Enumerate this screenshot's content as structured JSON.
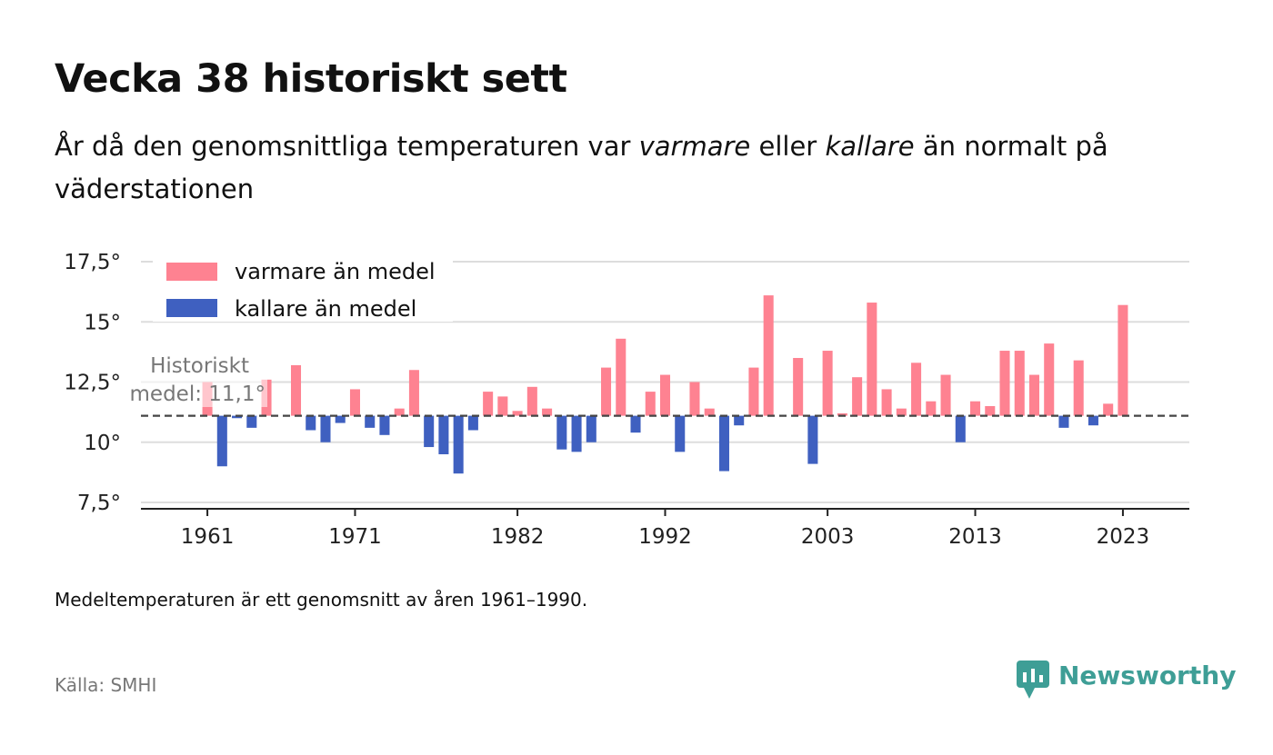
{
  "title": "Vecka 38 historiskt sett",
  "subtitle": {
    "part1": "År då den genomsnittliga temperaturen var ",
    "warmer": "varmare",
    "part2": " eller ",
    "colder": "kallare",
    "part3": " än normalt på väderstationen"
  },
  "footnote": "Medeltemperaturen är ett genomsnitt av åren 1961–1990.",
  "source": "Källa: SMHI",
  "brand": {
    "name": "Newsworthy",
    "icon": "newsworthy-logo-icon",
    "color": "#3e9e96"
  },
  "colors": {
    "warm": "#fe8291",
    "cold": "#3f60c0",
    "grid": "#dddddd",
    "reference_line": "#444444"
  },
  "chart_data": {
    "type": "bar",
    "baseline": 11.1,
    "reference_label": [
      "Historiskt",
      "medel: 11,1°"
    ],
    "legend": {
      "position": "top-left",
      "warm_label": "varmare än medel",
      "cold_label": "kallare än medel"
    },
    "ylim": [
      7.5,
      17.5
    ],
    "yticks": [
      7.5,
      10,
      12.5,
      15,
      17.5
    ],
    "ytick_labels": [
      "7,5°",
      "10°",
      "12,5°",
      "15°",
      "17,5°"
    ],
    "xticks": [
      1961,
      1971,
      1982,
      1992,
      2003,
      2013,
      2023
    ],
    "xlim": [
      1956.5,
      2027.5
    ],
    "x": [
      1961,
      1962,
      1963,
      1964,
      1965,
      1966,
      1967,
      1968,
      1969,
      1970,
      1971,
      1972,
      1973,
      1974,
      1975,
      1976,
      1977,
      1978,
      1979,
      1980,
      1981,
      1982,
      1983,
      1984,
      1985,
      1986,
      1987,
      1988,
      1989,
      1990,
      1991,
      1992,
      1993,
      1994,
      1995,
      1996,
      1997,
      1998,
      1999,
      2000,
      2001,
      2002,
      2003,
      2004,
      2005,
      2006,
      2007,
      2008,
      2009,
      2010,
      2011,
      2012,
      2013,
      2014,
      2015,
      2016,
      2017,
      2018,
      2019,
      2020,
      2021,
      2022,
      2023
    ],
    "values": [
      12.5,
      9.0,
      11.0,
      10.6,
      12.6,
      null,
      13.2,
      10.5,
      10.0,
      10.8,
      12.2,
      10.6,
      10.3,
      11.4,
      13.0,
      9.8,
      9.5,
      8.7,
      10.5,
      12.1,
      11.9,
      11.3,
      12.3,
      11.4,
      9.7,
      9.6,
      10.0,
      13.1,
      14.3,
      10.4,
      12.1,
      12.8,
      9.6,
      12.5,
      11.4,
      8.8,
      10.7,
      13.1,
      16.1,
      null,
      13.5,
      9.1,
      13.8,
      11.2,
      12.7,
      15.8,
      12.2,
      11.4,
      13.3,
      11.7,
      12.8,
      10.0,
      11.7,
      11.5,
      13.8,
      13.8,
      12.8,
      14.1,
      10.6,
      13.4,
      10.7,
      11.6,
      15.7
    ]
  }
}
